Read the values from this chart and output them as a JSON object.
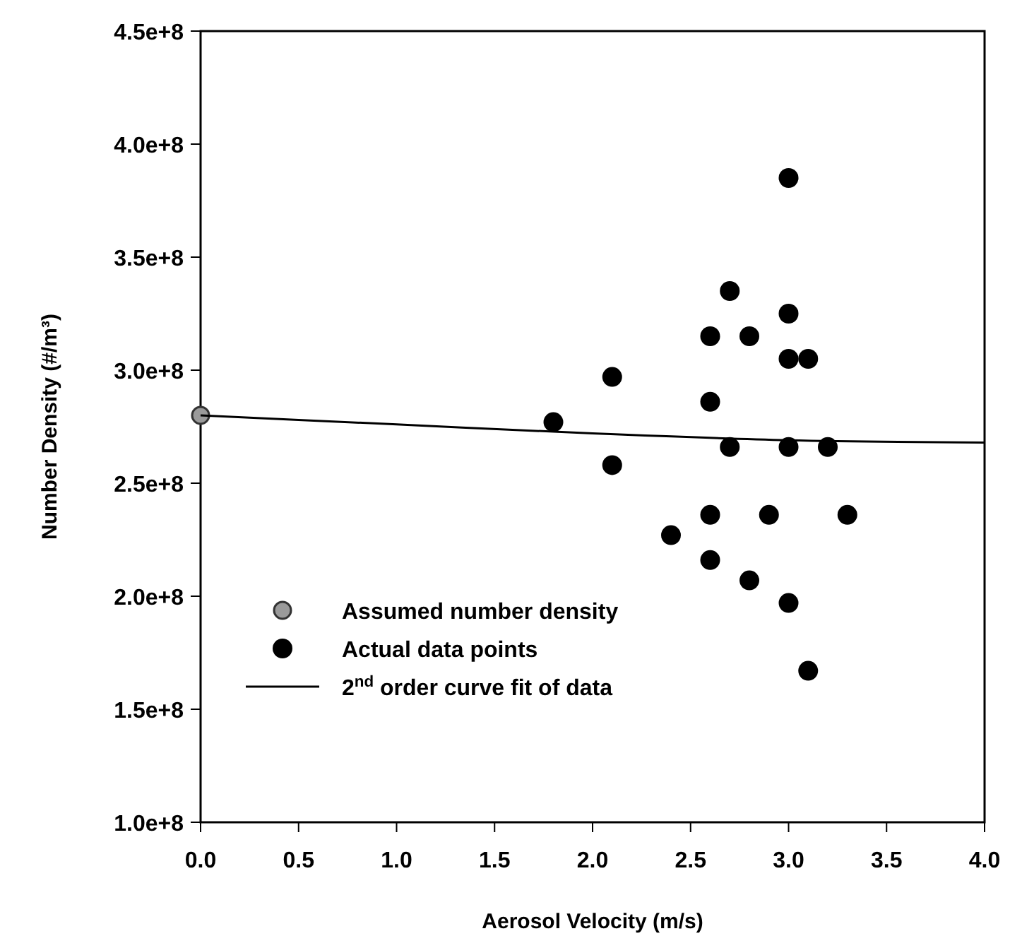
{
  "chart_data": {
    "type": "scatter",
    "xlabel": "Aerosol Velocity (m/s)",
    "ylabel": "Number Density (#/m³)",
    "xlim": [
      0,
      4.0
    ],
    "ylim": [
      100000000.0,
      450000000.0
    ],
    "xticks": [
      {
        "value": 0,
        "label": "0.0"
      },
      {
        "value": 0.5,
        "label": "0.5"
      },
      {
        "value": 1,
        "label": "1.0"
      },
      {
        "value": 1.5,
        "label": "1.5"
      },
      {
        "value": 2,
        "label": "2.0"
      },
      {
        "value": 2.5,
        "label": "2.5"
      },
      {
        "value": 3,
        "label": "3.0"
      },
      {
        "value": 3.5,
        "label": "3.5"
      },
      {
        "value": 4,
        "label": "4.0"
      }
    ],
    "yticks": [
      {
        "value": 100000000,
        "label": "1.0e+8"
      },
      {
        "value": 150000000,
        "label": "1.5e+8"
      },
      {
        "value": 200000000,
        "label": "2.0e+8"
      },
      {
        "value": 250000000,
        "label": "2.5e+8"
      },
      {
        "value": 300000000,
        "label": "3.0e+8"
      },
      {
        "value": 350000000,
        "label": "3.5e+8"
      },
      {
        "value": 400000000,
        "label": "4.0e+8"
      },
      {
        "value": 450000000,
        "label": "4.5e+8"
      }
    ],
    "grid": false,
    "legend": "bottom left",
    "series": [
      {
        "name": "Assumed number density",
        "color": "#9a9a9a",
        "marker": "circle",
        "x": [
          0
        ],
        "values": [
          280000000
        ]
      },
      {
        "name": "Actual data points",
        "color": "#000000",
        "marker": "circle",
        "x": [
          1.8,
          2.1,
          2.1,
          2.4,
          2.6,
          2.6,
          2.6,
          2.6,
          2.7,
          2.7,
          2.8,
          2.8,
          2.9,
          3.0,
          3.0,
          3.0,
          3.0,
          3.0,
          3.1,
          3.1,
          3.2,
          3.3
        ],
        "values": [
          277000000,
          297000000,
          258000000,
          227000000,
          315000000,
          286000000,
          236000000,
          216000000,
          335000000,
          266000000,
          315000000,
          207000000,
          236000000,
          385000000,
          325000000,
          305000000,
          266000000,
          197000000,
          305000000,
          167000000,
          266000000,
          236000000
        ]
      },
      {
        "name": "2$^{nd}$ order curve fit of data",
        "color": "#000000",
        "type": "line",
        "x": [
          0,
          1,
          2,
          3,
          4
        ],
        "values": [
          280000000,
          276000000,
          272000000,
          269000000,
          268000000
        ]
      }
    ]
  }
}
